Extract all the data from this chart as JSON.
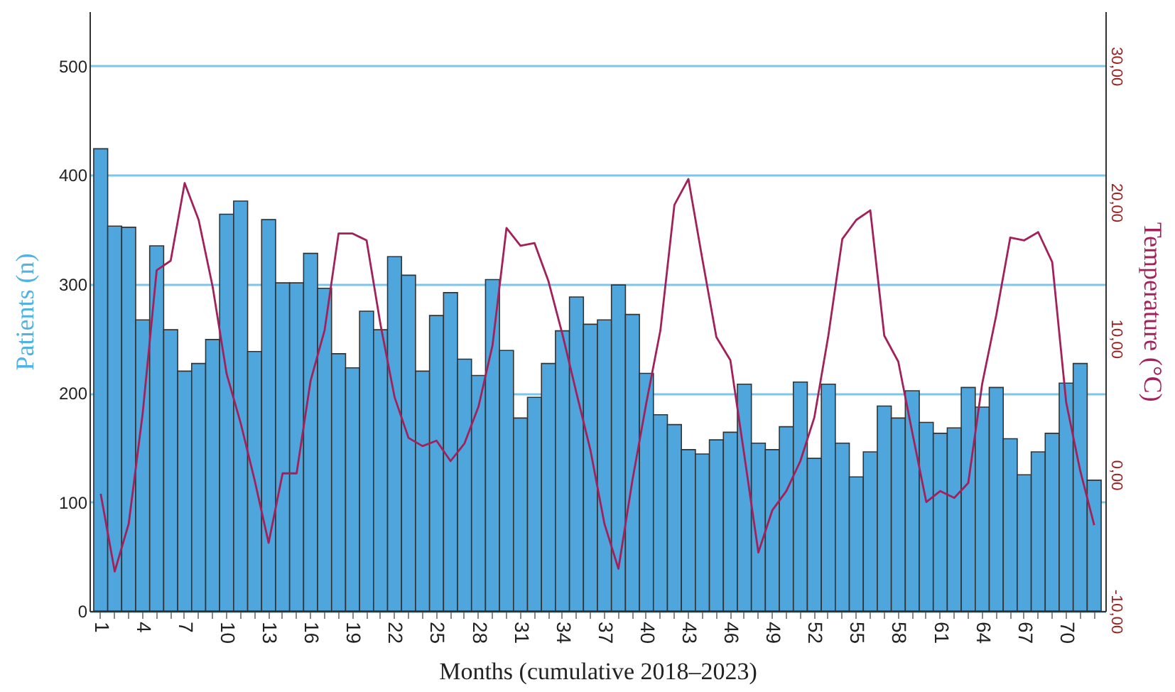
{
  "chart_data": {
    "type": "bar",
    "xlabel": "Months (cumulative 2018–2023)",
    "ylabel": "Patients (n)",
    "y2label": "Temperature (°C)",
    "categories": [
      "1",
      null,
      null,
      "4",
      null,
      null,
      "7",
      null,
      null,
      "10",
      null,
      null,
      "13",
      null,
      null,
      "16",
      null,
      null,
      "19",
      null,
      null,
      "22",
      null,
      null,
      "25",
      null,
      null,
      "28",
      null,
      null,
      "31",
      null,
      null,
      "34",
      null,
      null,
      "37",
      null,
      null,
      "40",
      null,
      null,
      "43",
      null,
      null,
      "46",
      null,
      null,
      "49",
      null,
      null,
      "52",
      null,
      null,
      "55",
      null,
      null,
      "58",
      null,
      null,
      "61",
      null,
      null,
      "64",
      null,
      null,
      "67",
      null,
      null,
      "70",
      null,
      null
    ],
    "series": [
      {
        "color": "#4ea6dc",
        "values": [
          424,
          353,
          352,
          267,
          335,
          258,
          220,
          227,
          249,
          364,
          376,
          238,
          359,
          301,
          301,
          328,
          296,
          236,
          223,
          275,
          258,
          325,
          308,
          220,
          271,
          292,
          231,
          216,
          304,
          239,
          177,
          196,
          227,
          257,
          288,
          263,
          267,
          299,
          272,
          218,
          180,
          171,
          148,
          144,
          157,
          164,
          208,
          154,
          148,
          169,
          210,
          140,
          208,
          154,
          123,
          146,
          188,
          177,
          202,
          173,
          163,
          168,
          205,
          187,
          205,
          158,
          125,
          146,
          163,
          209,
          227,
          120
        ]
      },
      {
        "type": "line",
        "axis": "y2",
        "color": "#a3215a",
        "line_style": "solid",
        "marker": "none",
        "values": [
          -1.4,
          -7.1,
          -3.6,
          4.5,
          15.0,
          15.7,
          21.4,
          18.7,
          13.8,
          7.4,
          3.8,
          -0.4,
          -5.0,
          0.1,
          0.1,
          6.9,
          10.6,
          17.7,
          17.7,
          17.2,
          11.0,
          5.7,
          2.7,
          2.1,
          2.5,
          1.0,
          2.3,
          5.0,
          9.5,
          18.1,
          16.8,
          17.0,
          14.2,
          10.3,
          6.0,
          1.8,
          -3.6,
          -6.9,
          -0.4,
          5.3,
          10.6,
          19.8,
          21.7,
          15.8,
          10.1,
          8.4,
          1.4,
          -5.7,
          -2.6,
          -1.2,
          1.0,
          4.2,
          10.2,
          17.3,
          18.7,
          19.4,
          10.2,
          8.3,
          3.1,
          -2.0,
          -1.2,
          -1.7,
          -0.6,
          6.7,
          11.7,
          17.4,
          17.2,
          17.8,
          15.6,
          5.3,
          0.3,
          -3.7
        ]
      }
    ],
    "ylim": [
      0,
      550
    ],
    "yticks": [
      0,
      100,
      200,
      300,
      400,
      500
    ],
    "y2lim": [
      -10,
      34
    ],
    "y2ticks": [
      {
        "value": -10,
        "label": "-10,00"
      },
      {
        "value": 0,
        "label": "0,00"
      },
      {
        "value": 10,
        "label": "10,00"
      },
      {
        "value": 20,
        "label": "20,00"
      },
      {
        "value": 30,
        "label": "30,00"
      }
    ],
    "grid": "y"
  }
}
